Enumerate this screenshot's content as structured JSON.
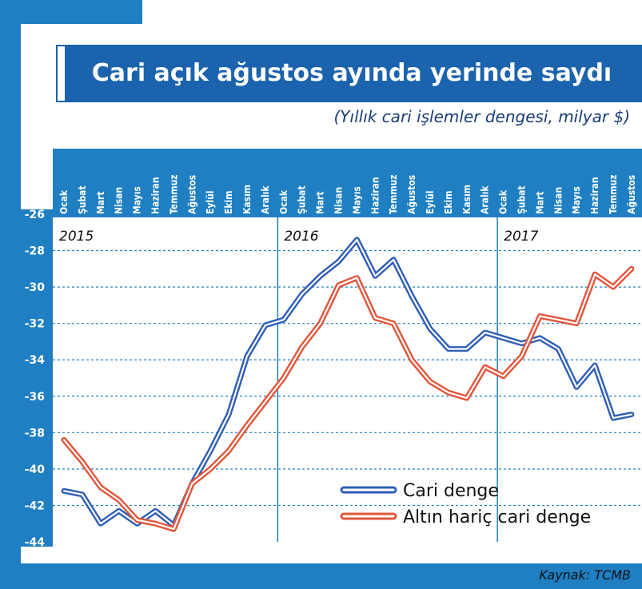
{
  "title": "Cari açık ağustos ayında yerinde saydı",
  "subtitle": "(Yıllık cari işlemler dengesi, milyar $)",
  "source": "Kaynak: TCMB",
  "colors": {
    "frame": "#1f7fc2",
    "title_bar": "#1b63ad",
    "grid": "#1f7fc2",
    "series_blue": "#2f5eb5",
    "series_red": "#e2563c"
  },
  "chart_data": {
    "type": "line",
    "x": [
      "Ocak",
      "Şubat",
      "Mart",
      "Nisan",
      "Mayıs",
      "Haziran",
      "Temmuz",
      "Ağustos",
      "Eylül",
      "Ekim",
      "Kasım",
      "Aralık",
      "Ocak",
      "Şubat",
      "Mart",
      "Nisan",
      "Mayıs",
      "Haziran",
      "Temmuz",
      "Ağustos",
      "Eylül",
      "Ekim",
      "Kasım",
      "Aralık",
      "Ocak",
      "Şubat",
      "Mart",
      "Nisan",
      "Mayıs",
      "Haziran",
      "Temmuz",
      "Ağustos"
    ],
    "years": [
      {
        "label": "2015",
        "start_index": 0
      },
      {
        "label": "2016",
        "start_index": 12
      },
      {
        "label": "2017",
        "start_index": 24
      }
    ],
    "series": [
      {
        "name": "Cari denge",
        "values": [
          -41.2,
          -41.4,
          -43.0,
          -42.3,
          -43.0,
          -42.3,
          -43.1,
          -40.8,
          -39.0,
          -37.0,
          -33.8,
          -32.1,
          -31.8,
          -30.4,
          -29.4,
          -28.6,
          -27.4,
          -29.4,
          -28.5,
          -30.5,
          -32.3,
          -33.4,
          -33.4,
          -32.5,
          -32.8,
          -33.1,
          -32.8,
          -33.4,
          -35.5,
          -34.3,
          -37.2,
          -37.0
        ]
      },
      {
        "name": "Altın hariç cari denge",
        "values": [
          -38.4,
          -39.6,
          -41.0,
          -41.7,
          -42.8,
          -43.0,
          -43.3,
          -40.8,
          -40.0,
          -39.0,
          -37.6,
          -36.3,
          -35.0,
          -33.3,
          -32.0,
          -29.9,
          -29.5,
          -31.7,
          -32.0,
          -34.0,
          -35.2,
          -35.8,
          -36.1,
          -34.4,
          -34.9,
          -33.8,
          -31.6,
          -31.8,
          -32.0,
          -29.3,
          -30.0,
          -29.0
        ]
      }
    ],
    "ylim": [
      -44,
      -26
    ],
    "yticks": [
      -26,
      -28,
      -30,
      -32,
      -34,
      -36,
      -38,
      -40,
      -42,
      -44
    ],
    "grid": "dashed horizontal",
    "legend_position": "bottom-right"
  }
}
